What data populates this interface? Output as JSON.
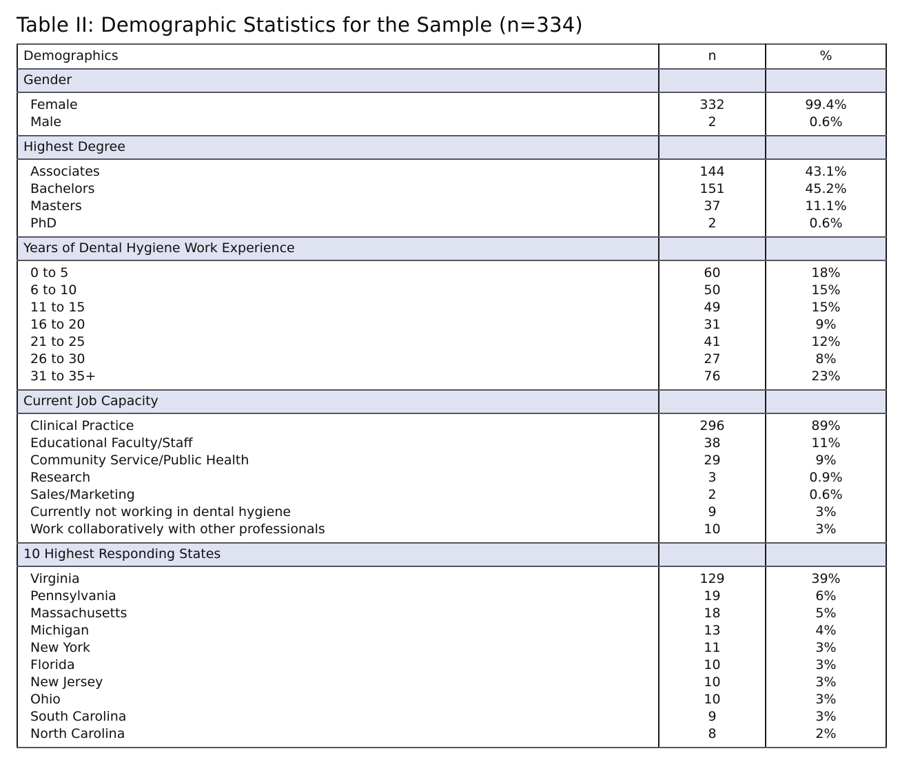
{
  "title": "Table II: Demographic Statistics for the Sample (n=334)",
  "table": {
    "columns": {
      "demographics": "Demographics",
      "n": "n",
      "pct": "%"
    },
    "sections": [
      {
        "header": "Gender",
        "rows": [
          {
            "label": "Female",
            "n": "332",
            "pct": "99.4%"
          },
          {
            "label": "Male",
            "n": "2",
            "pct": "0.6%"
          }
        ]
      },
      {
        "header": "Highest Degree",
        "rows": [
          {
            "label": "Associates",
            "n": "144",
            "pct": "43.1%"
          },
          {
            "label": "Bachelors",
            "n": "151",
            "pct": "45.2%"
          },
          {
            "label": "Masters",
            "n": "37",
            "pct": "11.1%"
          },
          {
            "label": "PhD",
            "n": "2",
            "pct": "0.6%"
          }
        ]
      },
      {
        "header": "Years of Dental Hygiene Work Experience",
        "rows": [
          {
            "label": "0 to 5",
            "n": "60",
            "pct": "18%"
          },
          {
            "label": "6 to 10",
            "n": "50",
            "pct": "15%"
          },
          {
            "label": "11 to 15",
            "n": "49",
            "pct": "15%"
          },
          {
            "label": "16 to 20",
            "n": "31",
            "pct": "9%"
          },
          {
            "label": "21 to 25",
            "n": "41",
            "pct": "12%"
          },
          {
            "label": "26 to 30",
            "n": "27",
            "pct": "8%"
          },
          {
            "label": "31 to 35+",
            "n": "76",
            "pct": "23%"
          }
        ]
      },
      {
        "header": "Current Job Capacity",
        "rows": [
          {
            "label": "Clinical Practice",
            "n": "296",
            "pct": "89%"
          },
          {
            "label": "Educational Faculty/Staff",
            "n": "38",
            "pct": "11%"
          },
          {
            "label": "Community Service/Public Health",
            "n": "29",
            "pct": "9%"
          },
          {
            "label": "Research",
            "n": "3",
            "pct": "0.9%"
          },
          {
            "label": "Sales/Marketing",
            "n": "2",
            "pct": "0.6%"
          },
          {
            "label": "Currently not working in dental hygiene",
            "n": "9",
            "pct": "3%"
          },
          {
            "label": "Work collaboratively with other professionals",
            "n": "10",
            "pct": "3%"
          }
        ]
      },
      {
        "header": "10 Highest Responding States",
        "rows": [
          {
            "label": "Virginia",
            "n": "129",
            "pct": "39%"
          },
          {
            "label": "Pennsylvania",
            "n": "19",
            "pct": "6%"
          },
          {
            "label": "Massachusetts",
            "n": "18",
            "pct": "5%"
          },
          {
            "label": "Michigan",
            "n": "13",
            "pct": "4%"
          },
          {
            "label": "New York",
            "n": "11",
            "pct": "3%"
          },
          {
            "label": "Florida",
            "n": "10",
            "pct": "3%"
          },
          {
            "label": "New Jersey",
            "n": "10",
            "pct": "3%"
          },
          {
            "label": "Ohio",
            "n": "10",
            "pct": "3%"
          },
          {
            "label": "South Carolina",
            "n": "9",
            "pct": "3%"
          },
          {
            "label": "North Carolina",
            "n": "8",
            "pct": "2%"
          }
        ]
      }
    ]
  },
  "colors": {
    "section_bg": "#dfe2f1",
    "border_horizontal": "#55555e",
    "border_vertical": "#1a1a1c",
    "text": "#101010"
  }
}
